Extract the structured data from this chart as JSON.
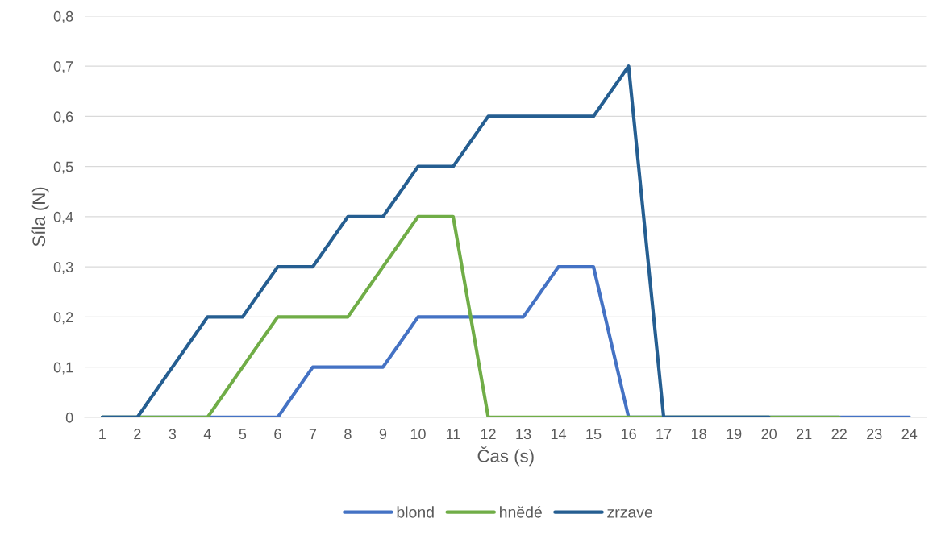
{
  "chart_data": {
    "type": "line",
    "xlabel": "Čas (s)",
    "ylabel": "Síla (N)",
    "categories": [
      "1",
      "2",
      "3",
      "4",
      "5",
      "6",
      "7",
      "8",
      "9",
      "10",
      "11",
      "12",
      "13",
      "14",
      "15",
      "16",
      "17",
      "18",
      "19",
      "20",
      "21",
      "22",
      "23",
      "24"
    ],
    "series": [
      {
        "name": "blond",
        "color": "#4472c4",
        "values": [
          0,
          0,
          0,
          0,
          0,
          0,
          0.1,
          0.1,
          0.1,
          0.2,
          0.2,
          0.2,
          0.2,
          0.3,
          0.3,
          0,
          0,
          0,
          0,
          0,
          0,
          0,
          0,
          0
        ]
      },
      {
        "name": "hnědé",
        "color": "#70ad47",
        "values": [
          0,
          0,
          0,
          0,
          0.1,
          0.2,
          0.2,
          0.2,
          0.3,
          0.4,
          0.4,
          0,
          0,
          0,
          0,
          0,
          0,
          0,
          0,
          0,
          0,
          0,
          null,
          null
        ]
      },
      {
        "name": "zrzave",
        "color": "#255e91",
        "values": [
          0,
          0,
          0.1,
          0.2,
          0.2,
          0.3,
          0.3,
          0.4,
          0.4,
          0.5,
          0.5,
          0.6,
          0.6,
          0.6,
          0.6,
          0.7,
          0,
          0,
          0,
          0,
          null,
          null,
          null,
          null
        ]
      }
    ],
    "ylim": [
      0,
      0.8
    ],
    "yticks": [
      0,
      {
        "value": 0.1,
        "label": "0,1"
      },
      {
        "value": 0.2,
        "label": "0,2"
      },
      {
        "value": 0.3,
        "label": "0,3"
      },
      {
        "value": 0.4,
        "label": "0,4"
      },
      {
        "value": 0.5,
        "label": "0,5"
      },
      {
        "value": 0.6,
        "label": "0,6"
      },
      {
        "value": 0.7,
        "label": "0,7"
      },
      {
        "value": 0.8,
        "label": "0,8"
      }
    ],
    "grid": "y",
    "legend": "bottom",
    "marker": "none",
    "line_style": "solid"
  }
}
